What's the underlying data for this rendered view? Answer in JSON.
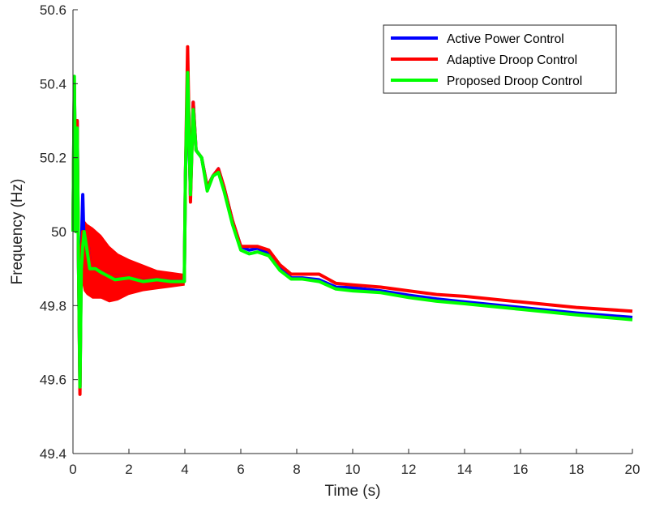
{
  "chart_data": {
    "type": "line",
    "title": "",
    "xlabel": "Time (s)",
    "ylabel": "Frequency (Hz)",
    "xlim": [
      0,
      20
    ],
    "ylim": [
      49.4,
      50.6
    ],
    "xticks": [
      0,
      2,
      4,
      6,
      8,
      10,
      12,
      14,
      16,
      18,
      20
    ],
    "yticks": [
      49.4,
      49.6,
      49.8,
      50,
      50.2,
      50.4,
      50.6
    ],
    "xtick_labels": [
      "0",
      "2",
      "4",
      "6",
      "8",
      "10",
      "12",
      "14",
      "16",
      "18",
      "20"
    ],
    "ytick_labels": [
      "49.4",
      "49.6",
      "49.8",
      "50",
      "50.2",
      "50.4",
      "50.6"
    ],
    "grid": false,
    "legend_position": "top-right",
    "series": [
      {
        "name": "Active Power Control",
        "color": "#0000FF",
        "x": [
          0,
          0.05,
          0.1,
          0.15,
          0.2,
          0.25,
          0.3,
          0.35,
          0.4,
          0.5,
          0.6,
          0.8,
          1.0,
          1.5,
          2.0,
          2.5,
          3.0,
          3.5,
          3.98,
          4.02,
          4.1,
          4.2,
          4.3,
          4.4,
          4.6,
          4.8,
          5.0,
          5.2,
          5.4,
          5.7,
          6.0,
          6.3,
          6.6,
          7.0,
          7.4,
          7.8,
          8.2,
          8.8,
          9.4,
          10.0,
          11.0,
          12.0,
          13.0,
          14.0,
          16.0,
          18.0,
          20.0
        ],
        "y": [
          50.0,
          50.4,
          50.05,
          50.3,
          49.9,
          49.58,
          49.95,
          50.1,
          49.95,
          50.0,
          49.92,
          49.9,
          49.89,
          49.88,
          49.88,
          49.87,
          49.87,
          49.866,
          49.866,
          50.15,
          50.4,
          50.1,
          50.35,
          50.22,
          50.2,
          50.12,
          50.15,
          50.17,
          50.12,
          50.03,
          49.96,
          49.95,
          49.955,
          49.94,
          49.9,
          49.875,
          49.875,
          49.87,
          49.85,
          49.848,
          49.84,
          49.828,
          49.818,
          49.81,
          49.795,
          49.78,
          49.768
        ]
      },
      {
        "name": "Adaptive Droop Control",
        "color": "#FF0000",
        "x": [
          0,
          0.05,
          0.1,
          0.15,
          0.2,
          0.25,
          0.3,
          0.35,
          0.4,
          0.5,
          0.6,
          0.8,
          1.0,
          1.5,
          2.0,
          2.5,
          3.0,
          3.5,
          3.98,
          4.02,
          4.1,
          4.2,
          4.3,
          4.4,
          4.6,
          4.8,
          5.0,
          5.2,
          5.4,
          5.7,
          6.0,
          6.3,
          6.6,
          7.0,
          7.4,
          7.8,
          8.2,
          8.8,
          9.4,
          10.0,
          11.0,
          12.0,
          13.0,
          14.0,
          16.0,
          18.0,
          20.0
        ],
        "y": [
          50.0,
          50.4,
          50.05,
          50.3,
          49.9,
          49.56,
          49.95,
          50.0,
          49.95,
          50.0,
          49.92,
          49.9,
          49.89,
          49.88,
          49.88,
          49.87,
          49.87,
          49.866,
          49.866,
          50.15,
          50.5,
          50.08,
          50.35,
          50.22,
          50.2,
          50.12,
          50.15,
          50.17,
          50.12,
          50.03,
          49.96,
          49.96,
          49.96,
          49.95,
          49.91,
          49.885,
          49.885,
          49.885,
          49.86,
          49.856,
          49.85,
          49.84,
          49.83,
          49.825,
          49.81,
          49.795,
          49.785
        ]
      },
      {
        "name": "Proposed Droop Control",
        "color": "#00FF00",
        "x": [
          0,
          0.05,
          0.1,
          0.15,
          0.2,
          0.25,
          0.3,
          0.35,
          0.4,
          0.5,
          0.6,
          0.8,
          1.0,
          1.5,
          2.0,
          2.5,
          3.0,
          3.5,
          3.98,
          4.02,
          4.1,
          4.2,
          4.3,
          4.4,
          4.6,
          4.8,
          5.0,
          5.2,
          5.4,
          5.7,
          6.0,
          6.3,
          6.6,
          7.0,
          7.4,
          7.8,
          8.2,
          8.8,
          9.4,
          10.0,
          11.0,
          12.0,
          13.0,
          14.0,
          16.0,
          18.0,
          20.0
        ],
        "y": [
          50.0,
          50.42,
          50.0,
          50.28,
          49.9,
          49.58,
          49.9,
          49.96,
          50.0,
          49.95,
          49.9,
          49.9,
          49.89,
          49.87,
          49.875,
          49.865,
          49.87,
          49.865,
          49.865,
          50.15,
          50.43,
          50.1,
          50.33,
          50.22,
          50.2,
          50.11,
          50.15,
          50.16,
          50.11,
          50.02,
          49.95,
          49.94,
          49.945,
          49.935,
          49.895,
          49.872,
          49.872,
          49.865,
          49.845,
          49.84,
          49.835,
          49.822,
          49.812,
          49.805,
          49.79,
          49.775,
          49.762
        ]
      }
    ],
    "oscillation_band": {
      "series": "Adaptive Droop Control",
      "color": "#FF0000",
      "x": [
        0.3,
        0.4,
        0.5,
        0.7,
        1.0,
        1.3,
        1.6,
        2.0,
        2.5,
        3.0,
        3.5,
        3.98
      ],
      "upper": [
        50.02,
        50.03,
        50.02,
        50.01,
        49.99,
        49.96,
        49.94,
        49.925,
        49.91,
        49.895,
        49.89,
        49.885
      ],
      "lower": [
        49.88,
        49.84,
        49.83,
        49.82,
        49.82,
        49.81,
        49.815,
        49.83,
        49.84,
        49.845,
        49.85,
        49.855
      ]
    }
  }
}
